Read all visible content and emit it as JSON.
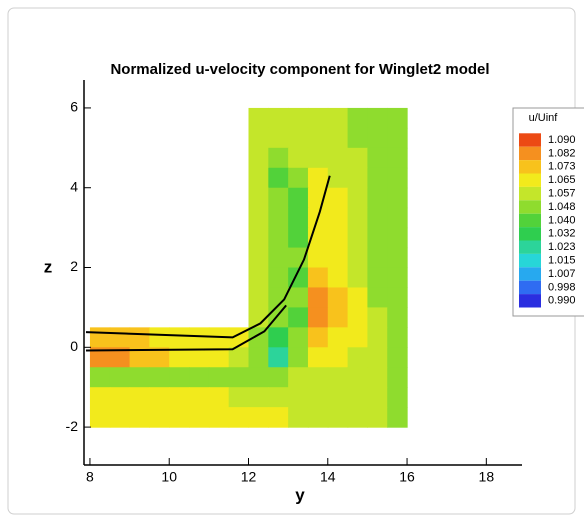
{
  "chart_data": {
    "type": "contour",
    "title": "Normalized u-velocity component for Winglet2 model",
    "x_label": "y",
    "y_label": "z",
    "xlim": [
      7.85,
      18.9
    ],
    "ylim": [
      -2.95,
      6.7
    ],
    "xticks": [
      8,
      10,
      12,
      14,
      16,
      18
    ],
    "yticks": [
      -2,
      0,
      2,
      4,
      6
    ],
    "legend": {
      "title": "u/Uinf",
      "position": "right",
      "levels": [
        {
          "value": 1.09,
          "label": "1.090"
        },
        1.082,
        1.073,
        1.065,
        1.057,
        1.048,
        {
          "value": 1.04,
          "label": "1.040"
        },
        1.032,
        1.023,
        1.015,
        1.007,
        0.998,
        {
          "value": 0.99,
          "label": "0.990"
        }
      ],
      "colors": [
        "#ec4a14",
        "#f5901f",
        "#f8c21c",
        "#f2ea1c",
        "#c4e62a",
        "#8fdc2e",
        "#52d23a",
        "#2fce4f",
        "#2cd49a",
        "#27d6d8",
        "#27a9ef",
        "#2f6cf2",
        "#2a2ee0"
      ]
    },
    "field": {
      "x": [
        8.25,
        8.75,
        9.25,
        9.75,
        10.25,
        10.75,
        11.25,
        11.75,
        12.25,
        12.75,
        13.25,
        13.75,
        14.25,
        14.75,
        15.25,
        15.75
      ],
      "z": [
        5.75,
        5.25,
        4.75,
        4.25,
        3.75,
        3.25,
        2.75,
        2.25,
        1.75,
        1.25,
        0.75,
        0.25,
        -0.25,
        -0.75,
        -1.25,
        -1.75
      ],
      "values": [
        [
          null,
          null,
          null,
          null,
          null,
          null,
          null,
          null,
          1.055,
          1.057,
          1.057,
          1.057,
          1.055,
          1.052,
          1.048,
          1.05
        ],
        [
          null,
          null,
          null,
          null,
          null,
          null,
          null,
          null,
          1.055,
          1.057,
          1.057,
          1.057,
          1.057,
          1.052,
          1.048,
          1.05
        ],
        [
          null,
          null,
          null,
          null,
          null,
          null,
          null,
          null,
          1.057,
          1.05,
          1.06,
          1.06,
          1.057,
          1.055,
          1.048,
          1.05
        ],
        [
          null,
          null,
          null,
          null,
          null,
          null,
          null,
          null,
          1.057,
          1.04,
          1.045,
          1.062,
          1.06,
          1.055,
          1.048,
          1.05
        ],
        [
          null,
          null,
          null,
          null,
          null,
          null,
          null,
          null,
          1.057,
          1.045,
          1.04,
          1.062,
          1.065,
          1.057,
          1.05,
          1.05
        ],
        [
          null,
          null,
          null,
          null,
          null,
          null,
          null,
          null,
          1.057,
          1.048,
          1.04,
          1.065,
          1.067,
          1.058,
          1.05,
          1.05
        ],
        [
          null,
          null,
          null,
          null,
          null,
          null,
          null,
          null,
          1.057,
          1.045,
          1.042,
          1.062,
          1.067,
          1.06,
          1.05,
          1.05
        ],
        [
          null,
          null,
          null,
          null,
          null,
          null,
          null,
          null,
          1.057,
          1.045,
          1.045,
          1.062,
          1.068,
          1.06,
          1.052,
          1.05
        ],
        [
          null,
          null,
          null,
          null,
          null,
          null,
          null,
          null,
          1.057,
          1.048,
          1.04,
          1.07,
          1.068,
          1.06,
          1.052,
          1.05
        ],
        [
          null,
          null,
          null,
          null,
          null,
          null,
          null,
          null,
          1.057,
          1.05,
          1.045,
          1.08,
          1.07,
          1.062,
          1.052,
          1.05
        ],
        [
          null,
          null,
          null,
          null,
          null,
          null,
          null,
          null,
          1.055,
          1.045,
          1.04,
          1.082,
          1.07,
          1.062,
          1.055,
          1.05
        ],
        [
          1.07,
          1.072,
          1.072,
          1.068,
          1.065,
          1.065,
          1.065,
          1.062,
          1.05,
          1.03,
          1.045,
          1.07,
          1.068,
          1.062,
          1.055,
          1.05
        ],
        [
          1.082,
          1.08,
          1.075,
          1.07,
          1.068,
          1.065,
          1.062,
          1.06,
          1.045,
          1.02,
          1.045,
          1.065,
          1.065,
          1.06,
          1.055,
          1.05
        ],
        [
          1.045,
          1.045,
          1.045,
          1.045,
          1.045,
          1.045,
          1.045,
          1.045,
          1.045,
          1.05,
          1.055,
          1.06,
          1.06,
          1.058,
          1.055,
          1.05
        ],
        [
          1.065,
          1.065,
          1.065,
          1.062,
          1.062,
          1.062,
          1.062,
          1.06,
          1.058,
          1.06,
          1.06,
          1.058,
          1.058,
          1.057,
          1.055,
          1.05
        ],
        [
          1.068,
          1.068,
          1.067,
          1.067,
          1.065,
          1.065,
          1.065,
          1.065,
          1.062,
          1.062,
          1.06,
          1.06,
          1.058,
          1.057,
          1.055,
          1.052
        ]
      ]
    },
    "lines": [
      {
        "color": "#000000",
        "x": [
          7.9,
          11.6,
          12.3,
          12.9,
          13.4,
          13.8,
          14.05
        ],
        "z": [
          0.38,
          0.25,
          0.6,
          1.2,
          2.2,
          3.4,
          4.3
        ]
      },
      {
        "color": "#000000",
        "x": [
          7.9,
          11.6,
          12.4,
          12.95
        ],
        "z": [
          -0.08,
          -0.05,
          0.4,
          1.05
        ]
      }
    ]
  }
}
